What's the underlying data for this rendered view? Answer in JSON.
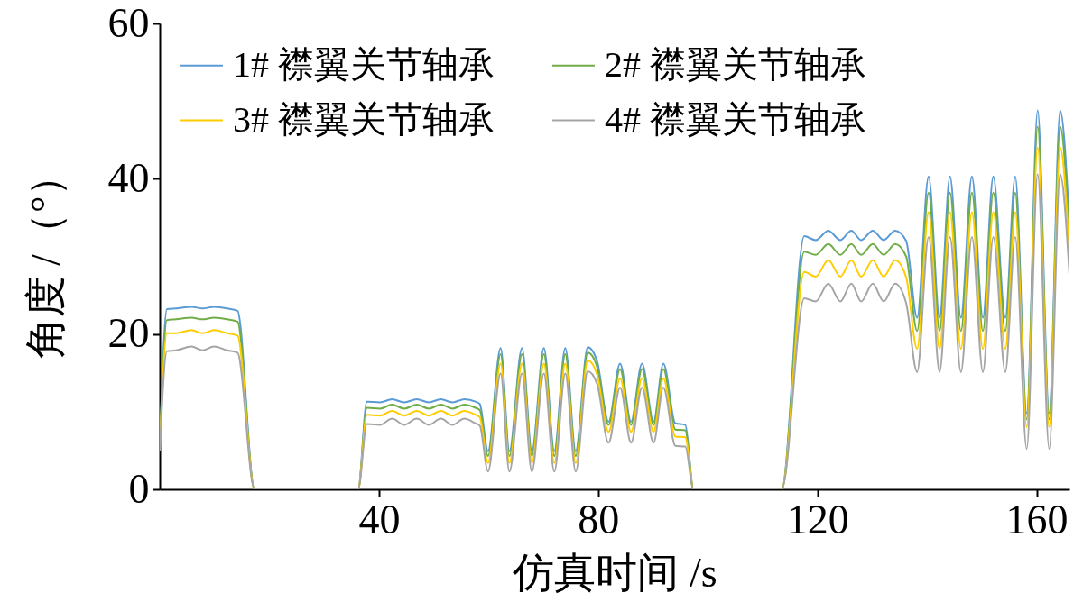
{
  "chart_data": {
    "type": "line",
    "xlabel": "仿真时间 /s",
    "ylabel": "角度 /（°）",
    "xlim": [
      0,
      166
    ],
    "xticks": [
      40,
      80,
      120,
      160
    ],
    "ylim": [
      0,
      60
    ],
    "yticks": [
      0,
      20,
      40,
      60
    ],
    "grid": false,
    "legend": "top left",
    "line_style": "solid",
    "x": [
      0,
      1.3,
      3.0,
      5.8,
      7.8,
      9.9,
      12.3,
      14.2,
      17.3,
      36.2,
      37.8,
      40.2,
      42.4,
      44.6,
      46.9,
      49.1,
      51.3,
      53.4,
      55.6,
      57.6,
      58.4,
      59.9,
      62.2,
      63.8,
      66.1,
      67.9,
      70.1,
      72.0,
      74.0,
      75.9,
      78.1,
      79.8,
      81.9,
      84.0,
      86.0,
      88.0,
      90.1,
      91.9,
      94.1,
      95.9,
      97.4,
      113.5,
      117.6,
      119.7,
      122.0,
      124.2,
      126.2,
      128.0,
      130.1,
      132.1,
      134.2,
      136.2,
      138.2,
      140.3,
      142.3,
      144.2,
      146.2,
      148.2,
      150.2,
      152.1,
      154.3,
      156.1,
      158.2,
      160.2,
      162.3,
      164.3,
      166
    ],
    "series": [
      {
        "name": "1# 襟翼关节轴承",
        "color": "#5b9bd5",
        "values": [
          5,
          23.2,
          23.3,
          23.5,
          23.3,
          23.5,
          23.3,
          23.0,
          0,
          0,
          11.3,
          11.2,
          11.6,
          11.2,
          11.6,
          11.2,
          11.6,
          11.2,
          11.6,
          11.3,
          11.0,
          4.9,
          18.2,
          4.9,
          18.2,
          4.9,
          18.2,
          4.9,
          18.2,
          4.9,
          18.3,
          16.5,
          8.7,
          16.2,
          8.7,
          16.2,
          8.7,
          16.2,
          8.5,
          8.3,
          0,
          0,
          32.6,
          32.1,
          33.3,
          32.1,
          33.3,
          32.1,
          33.3,
          32.1,
          33.3,
          32.0,
          22.1,
          40.3,
          22.1,
          40.3,
          22.1,
          40.3,
          22.1,
          40.3,
          22.1,
          40.3,
          9.8,
          48.8,
          9.8,
          48.8,
          34.0
        ]
      },
      {
        "name": "2# 襟翼关节轴承",
        "color": "#70ad47",
        "values": [
          5,
          21.8,
          21.9,
          22.1,
          21.9,
          22.1,
          21.9,
          21.6,
          0,
          0,
          10.5,
          10.4,
          10.9,
          10.4,
          10.9,
          10.4,
          10.9,
          10.4,
          10.9,
          10.5,
          10.2,
          4.3,
          17.4,
          4.3,
          17.4,
          4.3,
          17.4,
          4.3,
          17.4,
          4.3,
          17.6,
          15.8,
          8.3,
          15.5,
          8.3,
          15.5,
          8.3,
          15.5,
          7.7,
          7.6,
          0,
          0,
          30.6,
          30.2,
          31.6,
          30.2,
          31.6,
          30.2,
          31.6,
          30.2,
          31.6,
          30.0,
          20.4,
          38.2,
          20.4,
          38.2,
          20.4,
          38.2,
          20.4,
          38.2,
          20.4,
          38.2,
          9.0,
          46.7,
          9.0,
          46.7,
          32.5
        ]
      },
      {
        "name": "3# 襟翼关节轴承",
        "color": "#ffcc00",
        "values": [
          5,
          20.1,
          20.1,
          20.5,
          20.1,
          20.5,
          20.1,
          19.8,
          0,
          0,
          9.6,
          9.5,
          10.1,
          9.5,
          10.1,
          9.5,
          10.1,
          9.5,
          10.1,
          9.6,
          9.3,
          3.4,
          16.2,
          3.4,
          16.2,
          3.4,
          16.2,
          3.4,
          16.2,
          3.4,
          16.6,
          14.8,
          7.4,
          14.3,
          7.4,
          14.3,
          7.4,
          14.3,
          6.8,
          6.7,
          0,
          0,
          28.0,
          27.4,
          29.5,
          27.4,
          29.5,
          27.4,
          29.5,
          27.4,
          29.5,
          27.3,
          18.1,
          35.7,
          18.1,
          35.7,
          18.1,
          35.7,
          18.1,
          35.7,
          18.1,
          35.7,
          8.0,
          44.0,
          8.0,
          44.0,
          30.2
        ]
      },
      {
        "name": "4# 襟翼关节轴承",
        "color": "#a5a5a5",
        "values": [
          5,
          17.8,
          17.9,
          18.4,
          17.9,
          18.4,
          17.9,
          17.6,
          0,
          0,
          8.4,
          8.3,
          9.1,
          8.3,
          9.1,
          8.3,
          9.1,
          8.3,
          9.1,
          8.5,
          8.2,
          2.3,
          14.9,
          2.3,
          14.9,
          2.3,
          14.9,
          2.3,
          14.9,
          2.3,
          15.2,
          13.6,
          6.0,
          13.1,
          6.0,
          13.1,
          6.0,
          13.1,
          5.6,
          5.5,
          0,
          0,
          24.6,
          24.2,
          26.5,
          24.2,
          26.5,
          24.2,
          26.5,
          24.2,
          26.5,
          24.0,
          15.1,
          32.5,
          15.1,
          32.5,
          15.1,
          32.5,
          15.1,
          32.5,
          15.1,
          32.5,
          5.2,
          40.6,
          5.2,
          40.6,
          27.6
        ]
      }
    ]
  }
}
